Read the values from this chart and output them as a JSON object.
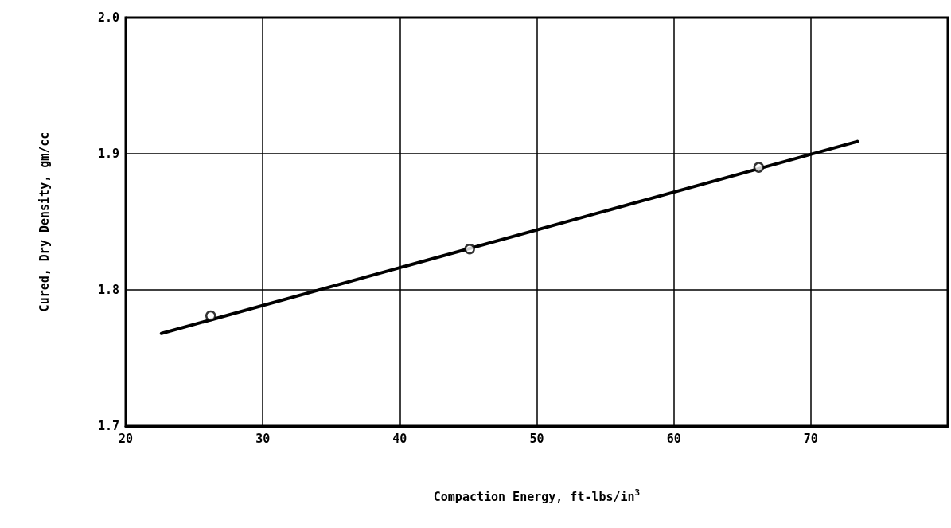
{
  "chart_data": {
    "type": "scatter",
    "xlabel": "Compaction Energy, ft-lbs/in$^{3}$",
    "ylabel": "Cured, Dry Density, gm/cc",
    "xlim": [
      20,
      80
    ],
    "xticks": [
      20,
      30,
      40,
      50,
      60,
      70,
      {
        "value": 80,
        "label": null
      }
    ],
    "ylim": [
      1.7,
      2.0
    ],
    "yticks": [
      1.7,
      1.8,
      1.9,
      {
        "value": 2.0,
        "label": "2.0"
      }
    ],
    "grid": true,
    "series": [
      {
        "color": "#000000",
        "marker": "circle",
        "x": [
          26.2,
          45.1,
          66.2
        ],
        "values": [
          1.781,
          1.83,
          1.89
        ]
      },
      {
        "type": "line",
        "color": "#000000",
        "marker": "none",
        "line_style": "solid",
        "x": [
          22.6,
          73.4
        ],
        "values": [
          1.768,
          1.909
        ]
      }
    ]
  }
}
